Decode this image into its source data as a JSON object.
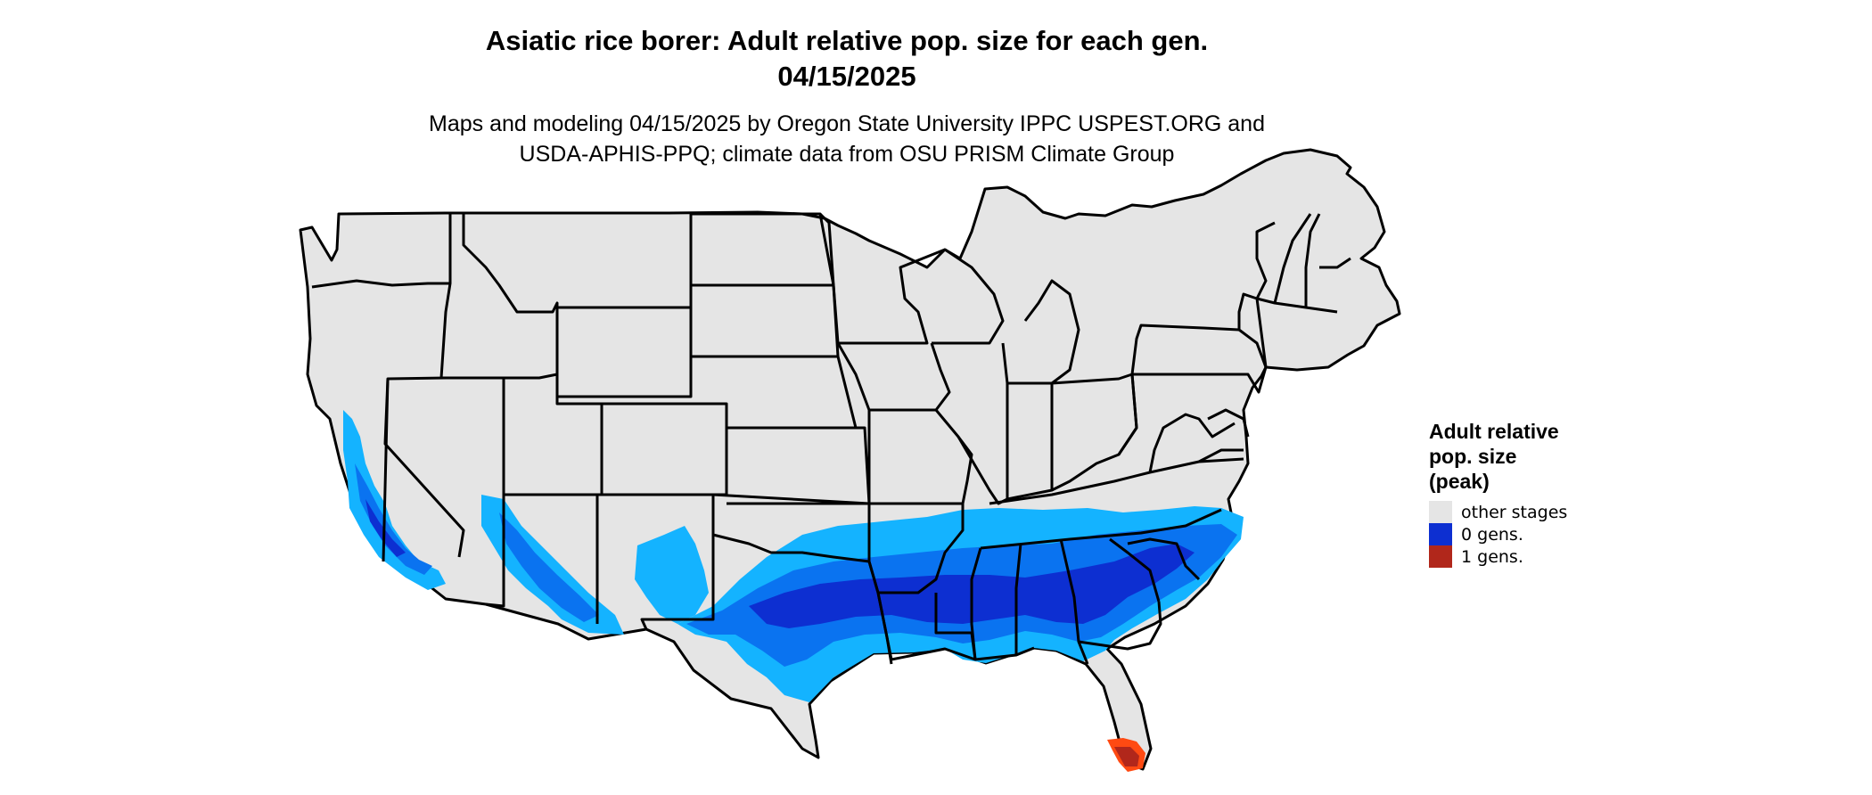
{
  "header": {
    "title_line1": "Asiatic rice borer: Adult relative pop. size for each gen.",
    "title_line2": "04/15/2025",
    "subtitle_line1": "Maps and modeling 04/15/2025 by Oregon State University IPPC USPEST.ORG and",
    "subtitle_line2": "USDA-APHIS-PPQ; climate data from OSU PRISM Climate Group"
  },
  "legend": {
    "title": "Adult relative pop. size (peak)",
    "items": [
      {
        "label": "other stages",
        "color": "#e5e5e5"
      },
      {
        "label": "0 gens.",
        "color": "#0d2fd1"
      },
      {
        "label": "1 gens.",
        "color": "#b1271b"
      }
    ]
  },
  "map": {
    "region": "contiguous-united-states",
    "background_fill": "#e5e5e5",
    "border_color": "#000000",
    "zone_colors": {
      "light_blue": "#14b3ff",
      "mid_blue": "#0a73f0",
      "dark_blue": "#0d2fd1",
      "orange": "#ff4a12",
      "dark_red": "#b1271b"
    }
  }
}
